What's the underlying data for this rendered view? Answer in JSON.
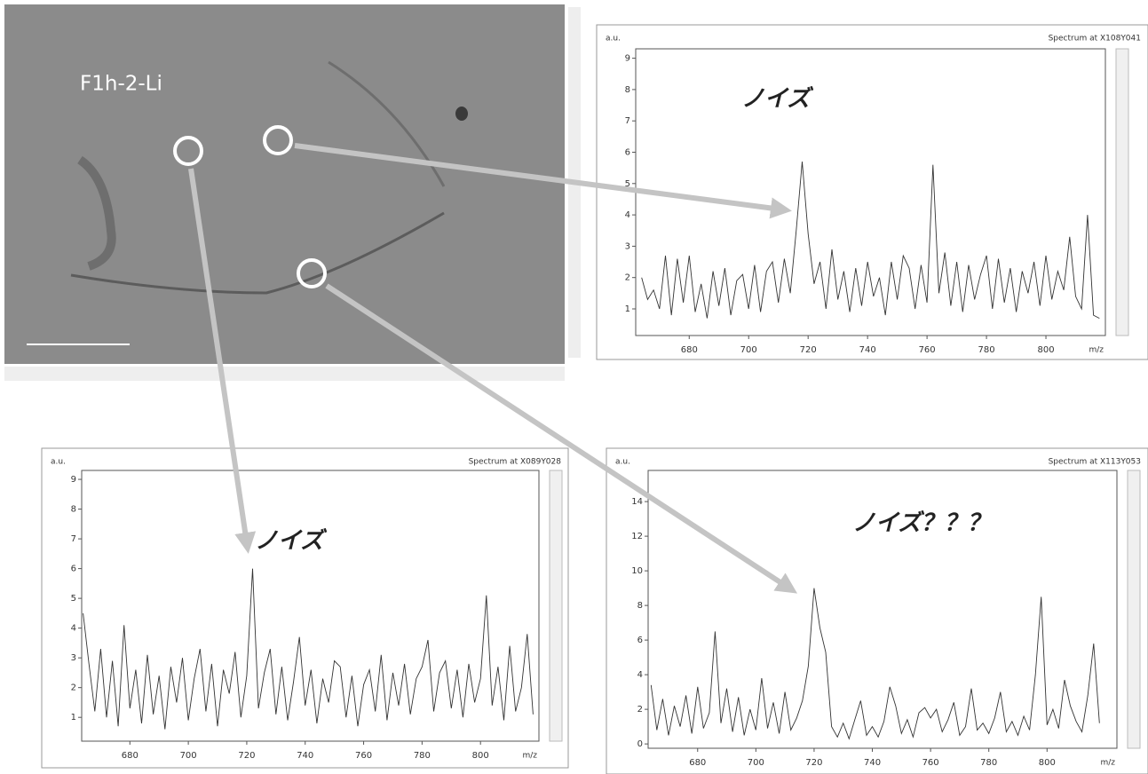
{
  "image": {
    "label": "F1h-2-Li"
  },
  "chart_data": [
    {
      "type": "line",
      "title": "Spectrum at X108Y041",
      "ylabel": "a.u.",
      "xlabel": "m/z",
      "annotation": "ノイズ",
      "color": "#333333",
      "x": [
        664,
        666,
        668,
        670,
        672,
        674,
        676,
        678,
        680,
        682,
        684,
        686,
        688,
        690,
        692,
        694,
        696,
        698,
        700,
        702,
        704,
        706,
        708,
        710,
        712,
        714,
        716,
        718,
        720,
        722,
        724,
        726,
        728,
        730,
        732,
        734,
        736,
        738,
        740,
        742,
        744,
        746,
        748,
        750,
        752,
        754,
        756,
        758,
        760,
        762,
        764,
        766,
        768,
        770,
        772,
        774,
        776,
        778,
        780,
        782,
        784,
        786,
        788,
        790,
        792,
        794,
        796,
        798,
        800,
        802,
        804,
        806,
        808,
        810,
        812,
        814,
        816,
        818
      ],
      "values": [
        2.0,
        1.3,
        1.6,
        1.0,
        2.7,
        0.8,
        2.6,
        1.2,
        2.7,
        0.9,
        1.8,
        0.7,
        2.2,
        1.1,
        2.3,
        0.8,
        1.9,
        2.1,
        1.0,
        2.4,
        0.9,
        2.2,
        2.5,
        1.2,
        2.6,
        1.5,
        3.5,
        5.7,
        3.4,
        1.8,
        2.5,
        1.0,
        2.9,
        1.3,
        2.2,
        0.9,
        2.3,
        1.1,
        2.5,
        1.4,
        2.0,
        0.8,
        2.5,
        1.3,
        2.7,
        2.3,
        1.0,
        2.4,
        1.2,
        5.6,
        1.5,
        2.8,
        1.1,
        2.5,
        0.9,
        2.4,
        1.3,
        2.1,
        2.7,
        1.0,
        2.6,
        1.2,
        2.3,
        0.9,
        2.2,
        1.5,
        2.5,
        1.1,
        2.7,
        1.3,
        2.2,
        1.6,
        3.3,
        1.4,
        1.0,
        4.0,
        0.8,
        0.7
      ],
      "xlim": [
        662,
        820
      ],
      "xticks": [
        680,
        700,
        720,
        740,
        760,
        780,
        800
      ],
      "ylim": [
        0.15,
        9.3
      ],
      "yticks": [
        1,
        2,
        3,
        4,
        5,
        6,
        7,
        8,
        9
      ]
    },
    {
      "type": "line",
      "title": "Spectrum at X089Y028",
      "ylabel": "a.u.",
      "xlabel": "m/z",
      "annotation": "ノイズ",
      "color": "#333333",
      "x": [
        664,
        666,
        668,
        670,
        672,
        674,
        676,
        678,
        680,
        682,
        684,
        686,
        688,
        690,
        692,
        694,
        696,
        698,
        700,
        702,
        704,
        706,
        708,
        710,
        712,
        714,
        716,
        718,
        720,
        722,
        724,
        726,
        728,
        730,
        732,
        734,
        736,
        738,
        740,
        742,
        744,
        746,
        748,
        750,
        752,
        754,
        756,
        758,
        760,
        762,
        764,
        766,
        768,
        770,
        772,
        774,
        776,
        778,
        780,
        782,
        784,
        786,
        788,
        790,
        792,
        794,
        796,
        798,
        800,
        802,
        804,
        806,
        808,
        810,
        812,
        814,
        816,
        818
      ],
      "values": [
        4.5,
        2.8,
        1.2,
        3.3,
        1.0,
        2.9,
        0.7,
        4.1,
        1.3,
        2.6,
        0.8,
        3.1,
        1.1,
        2.4,
        0.6,
        2.7,
        1.5,
        3.0,
        0.9,
        2.3,
        3.3,
        1.2,
        2.8,
        0.7,
        2.6,
        1.8,
        3.2,
        1.0,
        2.4,
        6.0,
        1.3,
        2.5,
        3.3,
        1.1,
        2.7,
        0.9,
        2.2,
        3.7,
        1.4,
        2.6,
        0.8,
        2.3,
        1.5,
        2.9,
        2.7,
        1.0,
        2.4,
        0.7,
        2.1,
        2.6,
        1.2,
        3.1,
        0.9,
        2.5,
        1.4,
        2.8,
        1.1,
        2.3,
        2.7,
        3.6,
        1.2,
        2.5,
        2.9,
        1.3,
        2.6,
        1.0,
        2.8,
        1.5,
        2.3,
        5.1,
        1.4,
        2.7,
        0.9,
        3.4,
        1.2,
        2.0,
        3.8,
        1.1
      ],
      "xlim": [
        663.5,
        820
      ],
      "xticks": [
        680,
        700,
        720,
        740,
        760,
        780,
        800
      ],
      "ylim": [
        0.2,
        9.3
      ],
      "yticks": [
        1,
        2,
        3,
        4,
        5,
        6,
        7,
        8,
        9
      ]
    },
    {
      "type": "line",
      "title": "Spectrum at X113Y053",
      "ylabel": "a.u.",
      "xlabel": "m/z",
      "annotation": "ノイズ？？？",
      "color": "#333333",
      "x": [
        664,
        666,
        668,
        670,
        672,
        674,
        676,
        678,
        680,
        682,
        684,
        686,
        688,
        690,
        692,
        694,
        696,
        698,
        700,
        702,
        704,
        706,
        708,
        710,
        712,
        714,
        716,
        718,
        720,
        722,
        724,
        726,
        728,
        730,
        732,
        734,
        736,
        738,
        740,
        742,
        744,
        746,
        748,
        750,
        752,
        754,
        756,
        758,
        760,
        762,
        764,
        766,
        768,
        770,
        772,
        774,
        776,
        778,
        780,
        782,
        784,
        786,
        788,
        790,
        792,
        794,
        796,
        798,
        800,
        802,
        804,
        806,
        808,
        810,
        812,
        814,
        816,
        818
      ],
      "values": [
        3.4,
        0.8,
        2.6,
        0.5,
        2.2,
        1.0,
        2.8,
        0.6,
        3.3,
        0.9,
        1.8,
        6.5,
        1.2,
        3.2,
        0.7,
        2.7,
        0.5,
        2.0,
        0.8,
        3.8,
        0.9,
        2.4,
        0.6,
        3.0,
        0.8,
        1.5,
        2.5,
        4.5,
        9.0,
        6.7,
        5.3,
        1.0,
        0.4,
        1.2,
        0.3,
        1.4,
        2.5,
        0.5,
        1.0,
        0.4,
        1.3,
        3.3,
        2.2,
        0.6,
        1.4,
        0.4,
        1.8,
        2.1,
        1.5,
        2.0,
        0.7,
        1.4,
        2.4,
        0.5,
        1.0,
        3.2,
        0.8,
        1.2,
        0.6,
        1.5,
        3.0,
        0.7,
        1.3,
        0.5,
        1.6,
        0.8,
        4.0,
        8.5,
        1.1,
        2.0,
        0.9,
        3.7,
        2.2,
        1.3,
        0.7,
        2.8,
        5.8,
        1.2
      ],
      "xlim": [
        663,
        824
      ],
      "xticks": [
        680,
        700,
        720,
        740,
        760,
        780,
        800
      ],
      "ylim": [
        -0.25,
        15.8
      ],
      "yticks": [
        0,
        2,
        4,
        6,
        8,
        10,
        12,
        14
      ]
    }
  ]
}
